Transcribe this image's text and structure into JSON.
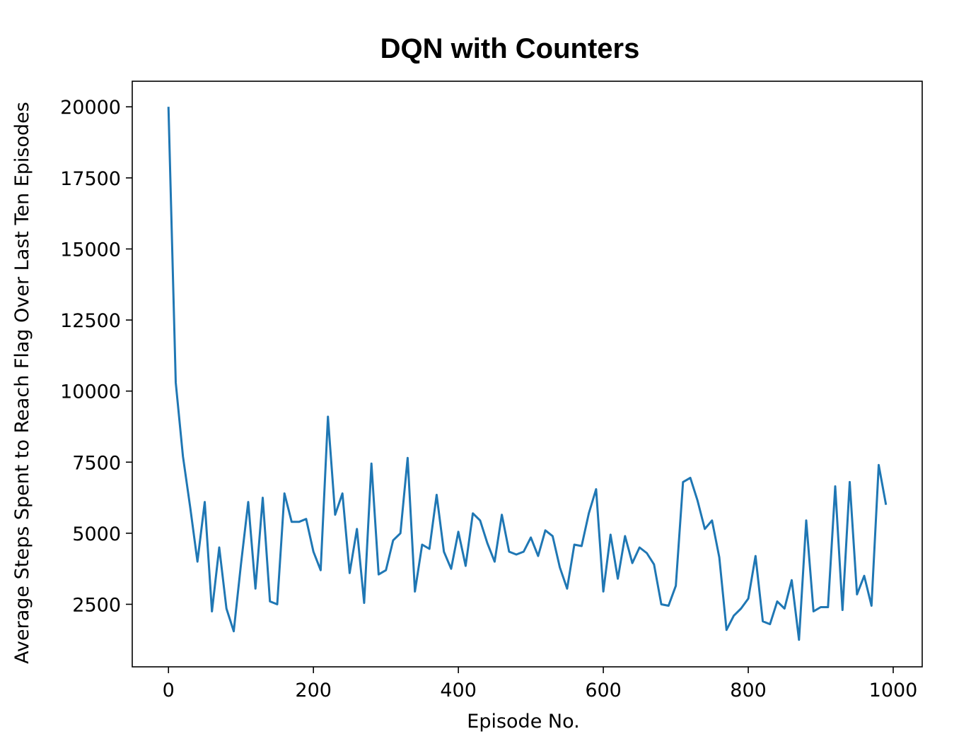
{
  "chart_data": {
    "type": "line",
    "title": "DQN with Counters",
    "xlabel": "Episode No.",
    "ylabel": "Average Steps Spent to Reach Flag Over Last Ten Episodes",
    "xlim": [
      -50,
      1040
    ],
    "ylim": [
      300,
      20900
    ],
    "xticks": [
      0,
      200,
      400,
      600,
      800,
      1000
    ],
    "yticks": [
      2500,
      5000,
      7500,
      10000,
      12500,
      15000,
      17500,
      20000
    ],
    "grid": false,
    "colors": {
      "line": "#1f77b4",
      "axes": "#000000"
    },
    "series": [
      {
        "x": [
          0,
          10,
          20,
          30,
          40,
          50,
          60,
          70,
          80,
          90,
          100,
          110,
          120,
          130,
          140,
          150,
          160,
          170,
          180,
          190,
          200,
          210,
          220,
          230,
          240,
          250,
          260,
          270,
          280,
          290,
          300,
          310,
          320,
          330,
          340,
          350,
          360,
          370,
          380,
          390,
          400,
          410,
          420,
          430,
          440,
          450,
          460,
          470,
          480,
          490,
          500,
          510,
          520,
          530,
          540,
          550,
          560,
          570,
          580,
          590,
          600,
          610,
          620,
          630,
          640,
          650,
          660,
          670,
          680,
          690,
          700,
          710,
          720,
          730,
          740,
          750,
          760,
          770,
          780,
          790,
          800,
          810,
          820,
          830,
          840,
          850,
          860,
          870,
          880,
          890,
          900,
          910,
          920,
          930,
          940,
          950,
          960,
          970,
          980,
          990
        ],
        "values": [
          20000,
          10300,
          7700,
          5900,
          4000,
          6100,
          2250,
          4500,
          2350,
          1550,
          3900,
          6100,
          3050,
          6250,
          2600,
          2500,
          6400,
          5400,
          5400,
          5500,
          4350,
          3700,
          9100,
          5650,
          6400,
          3600,
          5150,
          2550,
          7450,
          3550,
          3700,
          4750,
          5000,
          7650,
          2950,
          4600,
          4450,
          6350,
          4350,
          3750,
          5050,
          3850,
          5700,
          5450,
          4650,
          4000,
          5650,
          4350,
          4250,
          4350,
          4850,
          4200,
          5100,
          4900,
          3800,
          3050,
          4600,
          4550,
          5700,
          6550,
          2950,
          4950,
          3400,
          4900,
          3950,
          4500,
          4300,
          3900,
          2500,
          2450,
          3150,
          6800,
          6950,
          6150,
          5150,
          5450,
          4150,
          1600,
          2100,
          2350,
          2700,
          4200,
          1900,
          1800,
          2600,
          2350,
          3350,
          1250,
          5450,
          2250,
          2400,
          2400,
          6650,
          2300,
          6800,
          2850,
          3500,
          2450,
          7400,
          6000
        ]
      }
    ]
  }
}
